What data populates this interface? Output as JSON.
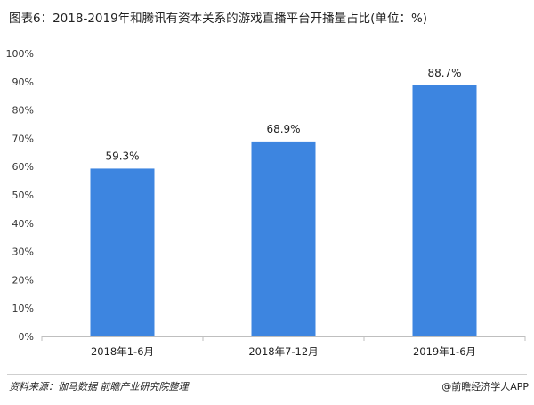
{
  "footer": {
    "source": "资料来源：伽马数据 前瞻产业研究院整理",
    "credit": "@前瞻经济学人APP"
  },
  "chart_data": {
    "type": "bar",
    "title": "图表6：2018-2019年和腾讯有资本关系的游戏直播平台开播量占比(单位：%)",
    "categories": [
      "2018年1-6月",
      "2018年7-12月",
      "2019年1-6月"
    ],
    "values": [
      59.3,
      68.9,
      88.7
    ],
    "data_labels": [
      "59.3%",
      "68.9%",
      "88.7%"
    ],
    "yticks": [
      "0%",
      "10%",
      "20%",
      "30%",
      "40%",
      "50%",
      "60%",
      "70%",
      "80%",
      "90%",
      "100%"
    ],
    "ylim": [
      0,
      100
    ],
    "xlabel": "",
    "ylabel": "",
    "grid": false,
    "bar_color": "#3d85e0"
  }
}
